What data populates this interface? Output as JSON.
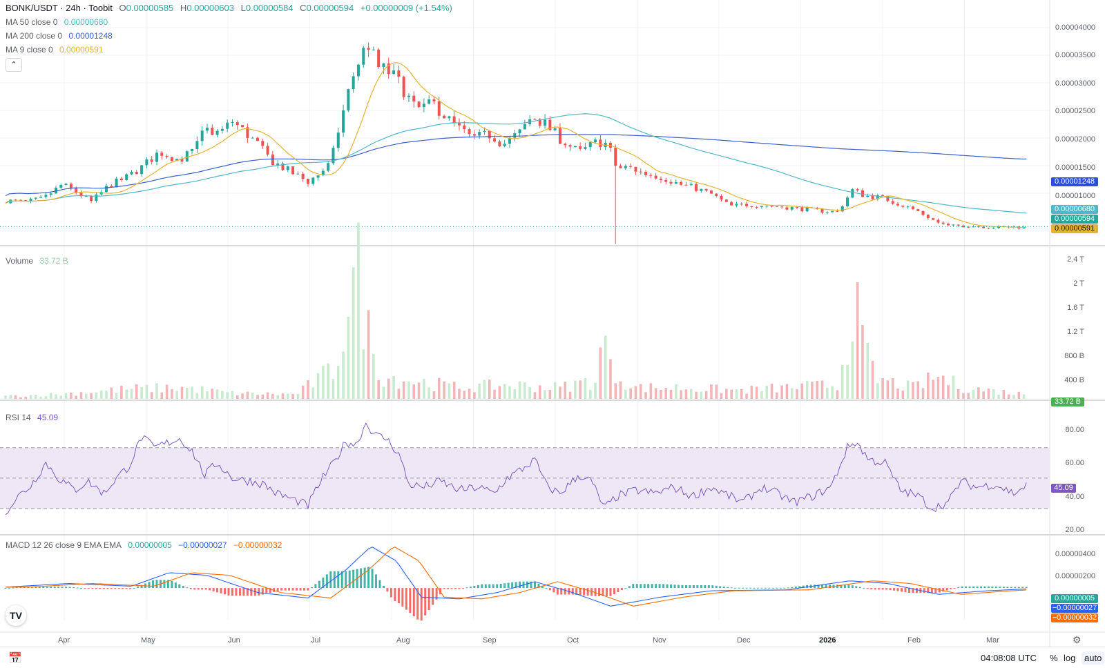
{
  "header": {
    "symbol": "BONK/USDT · 24h · Toobit",
    "ohlc": {
      "o_label": "O",
      "o": "0.00000585",
      "h_label": "H",
      "h": "0.00000603",
      "l_label": "L",
      "l": "0.00000584",
      "c_label": "C",
      "c": "0.00000594",
      "change": "+0.00000009 (+1.54%)"
    }
  },
  "indicators": {
    "ma50": {
      "label": "MA 50 close 0",
      "value": "0.00000680",
      "color": "#4fb8c9"
    },
    "ma200": {
      "label": "MA 200 close 0",
      "value": "0.00001248",
      "color": "#3d5fcf"
    },
    "ma9": {
      "label": "MA 9 close 0",
      "value": "0.00000591",
      "color": "#e5b333"
    },
    "collapse_icon": "chevron-up-icon"
  },
  "price_axis": {
    "ticks": [
      "0.00004000",
      "0.00003500",
      "0.00003000",
      "0.00002500",
      "0.00002000",
      "0.00001500",
      "0.00001000"
    ],
    "tags": {
      "ma200": "0.00001248",
      "ma50": "0.00000680",
      "last": "0.00000594",
      "ma9": "0.00000591"
    }
  },
  "volume": {
    "label": "Volume",
    "value": "33.72 B",
    "ticks": [
      "2.4 T",
      "2 T",
      "1.6 T",
      "1.2 T",
      "800 B",
      "400 B"
    ],
    "tag": "33.72 B"
  },
  "rsi": {
    "label": "RSI 14",
    "value": "45.09",
    "ticks": [
      "80.00",
      "60.00",
      "40.00",
      "20.00"
    ],
    "tag": "45.09"
  },
  "macd": {
    "label": "MACD 12 26 close 9 EMA EMA",
    "v1": "0.00000005",
    "v2": "−0.00000027",
    "v3": "−0.00000032",
    "ticks": [
      "0.00000400",
      "0.00000200"
    ],
    "tags": [
      "0.00000005",
      "−0.00000027",
      "−0.00000032"
    ]
  },
  "time_axis": [
    "Apr",
    "May",
    "Jun",
    "Jul",
    "Aug",
    "Sep",
    "Oct",
    "Nov",
    "Dec",
    "2026",
    "Feb",
    "Mar"
  ],
  "bottom_bar": {
    "time": "04:08:08 UTC",
    "percent": "%",
    "log": "log",
    "auto": "auto",
    "date_range_icon": "calendar-range-icon",
    "settings_icon": "settings-icon"
  },
  "logo": {
    "text": "TV"
  },
  "colors": {
    "up": "#26a69a",
    "down": "#ef5350",
    "vol_up": "#c8ebd0",
    "vol_down": "#f2b6b8",
    "rsi_line": "#7e57c2",
    "rsi_band": "#ede7f6",
    "macd_line": "#2962ff",
    "signal_line": "#ff6d00"
  },
  "chart_data": {
    "type": "candlestick",
    "waypoints_price": [
      [
        0,
        1.07e-05
      ],
      [
        15,
        1.04e-05
      ],
      [
        30,
        1.1e-05
      ],
      [
        45,
        1.35e-05
      ],
      [
        58,
        1.19e-05
      ],
      [
        68,
        1.05e-05
      ],
      [
        82,
        1.33e-05
      ],
      [
        95,
        1.46e-05
      ],
      [
        108,
        1.65e-05
      ],
      [
        122,
        1.92e-05
      ],
      [
        138,
        1.78e-05
      ],
      [
        150,
        1.95e-05
      ],
      [
        158,
        2.3e-05
      ],
      [
        170,
        2.25e-05
      ],
      [
        180,
        2.45e-05
      ],
      [
        190,
        2.26e-05
      ],
      [
        200,
        2.05e-05
      ],
      [
        210,
        1.78e-05
      ],
      [
        225,
        1.58e-05
      ],
      [
        240,
        1.4e-05
      ],
      [
        248,
        1.52e-05
      ],
      [
        258,
        1.72e-05
      ],
      [
        265,
        2.38e-05
      ],
      [
        275,
        3.2e-05
      ],
      [
        282,
        3.6e-05
      ],
      [
        288,
        3.8e-05
      ],
      [
        295,
        3.4e-05
      ],
      [
        305,
        3.3e-05
      ],
      [
        315,
        3.05e-05
      ],
      [
        325,
        2.65e-05
      ],
      [
        340,
        2.75e-05
      ],
      [
        355,
        2.4e-05
      ],
      [
        370,
        2.15e-05
      ],
      [
        385,
        2.22e-05
      ],
      [
        395,
        2.05e-05
      ],
      [
        408,
        2.25e-05
      ],
      [
        418,
        2.55e-05
      ],
      [
        428,
        2.4e-05
      ],
      [
        440,
        2.15e-05
      ],
      [
        455,
        1.9e-05
      ],
      [
        470,
        2.1e-05
      ],
      [
        478,
        2.05e-05
      ],
      [
        485,
        1.62e-05
      ],
      [
        495,
        1.65e-05
      ],
      [
        505,
        1.55e-05
      ],
      [
        520,
        1.48e-05
      ],
      [
        535,
        1.35e-05
      ],
      [
        548,
        1.28e-05
      ],
      [
        560,
        1.18e-05
      ],
      [
        575,
        9.7e-06
      ],
      [
        590,
        1e-05
      ],
      [
        605,
        9.8e-06
      ],
      [
        620,
        9.5e-06
      ],
      [
        640,
        9e-06
      ],
      [
        660,
        8.7e-06
      ],
      [
        672,
        1.25e-05
      ],
      [
        682,
        1.15e-05
      ],
      [
        695,
        1.12e-05
      ],
      [
        710,
        1e-05
      ],
      [
        725,
        8.7e-06
      ],
      [
        738,
        7e-06
      ],
      [
        748,
        6.2e-06
      ],
      [
        758,
        6.3e-06
      ],
      [
        770,
        6.2e-06
      ],
      [
        785,
        6e-06
      ],
      [
        800,
        6.1e-06
      ],
      [
        810,
        5.9e-06
      ]
    ],
    "waypoints_rsi": [
      [
        0,
        28
      ],
      [
        10,
        38
      ],
      [
        20,
        45
      ],
      [
        32,
        60
      ],
      [
        42,
        50
      ],
      [
        55,
        42
      ],
      [
        65,
        48
      ],
      [
        78,
        40
      ],
      [
        88,
        50
      ],
      [
        98,
        58
      ],
      [
        108,
        77
      ],
      [
        118,
        70
      ],
      [
        128,
        73
      ],
      [
        138,
        76
      ],
      [
        148,
        68
      ],
      [
        158,
        52
      ],
      [
        168,
        60
      ],
      [
        180,
        50
      ],
      [
        195,
        48
      ],
      [
        205,
        46
      ],
      [
        215,
        40
      ],
      [
        228,
        36
      ],
      [
        240,
        32
      ],
      [
        250,
        48
      ],
      [
        262,
        62
      ],
      [
        270,
        74
      ],
      [
        278,
        72
      ],
      [
        286,
        86
      ],
      [
        294,
        78
      ],
      [
        302,
        76
      ],
      [
        312,
        66
      ],
      [
        320,
        46
      ],
      [
        332,
        44
      ],
      [
        345,
        48
      ],
      [
        360,
        42
      ],
      [
        375,
        44
      ],
      [
        388,
        40
      ],
      [
        398,
        50
      ],
      [
        410,
        56
      ],
      [
        420,
        62
      ],
      [
        430,
        44
      ],
      [
        440,
        40
      ],
      [
        455,
        52
      ],
      [
        465,
        48
      ],
      [
        475,
        30
      ],
      [
        485,
        38
      ],
      [
        500,
        42
      ],
      [
        515,
        40
      ],
      [
        530,
        44
      ],
      [
        545,
        38
      ],
      [
        560,
        44
      ],
      [
        575,
        38
      ],
      [
        585,
        34
      ],
      [
        600,
        44
      ],
      [
        612,
        40
      ],
      [
        625,
        34
      ],
      [
        640,
        38
      ],
      [
        655,
        44
      ],
      [
        668,
        70
      ],
      [
        675,
        74
      ],
      [
        685,
        62
      ],
      [
        698,
        60
      ],
      [
        710,
        42
      ],
      [
        725,
        38
      ],
      [
        735,
        30
      ],
      [
        748,
        34
      ],
      [
        758,
        48
      ],
      [
        770,
        44
      ],
      [
        785,
        46
      ],
      [
        800,
        40
      ],
      [
        810,
        45
      ]
    ],
    "waypoints_vol": [
      [
        0,
        0.05
      ],
      [
        40,
        0.08
      ],
      [
        100,
        0.18
      ],
      [
        140,
        0.2
      ],
      [
        180,
        0.1
      ],
      [
        230,
        0.08
      ],
      [
        262,
        0.55
      ],
      [
        270,
        1.6
      ],
      [
        280,
        2.2
      ],
      [
        290,
        0.9
      ],
      [
        300,
        0.4
      ],
      [
        330,
        0.3
      ],
      [
        360,
        0.2
      ],
      [
        400,
        0.25
      ],
      [
        440,
        0.2
      ],
      [
        470,
        0.35
      ],
      [
        475,
        1.3
      ],
      [
        480,
        0.5
      ],
      [
        500,
        0.2
      ],
      [
        540,
        0.2
      ],
      [
        580,
        0.15
      ],
      [
        620,
        0.2
      ],
      [
        660,
        0.25
      ],
      [
        668,
        1.05
      ],
      [
        672,
        2.0
      ],
      [
        678,
        1.1
      ],
      [
        690,
        0.35
      ],
      [
        720,
        0.2
      ],
      [
        740,
        0.4
      ],
      [
        760,
        0.2
      ],
      [
        810,
        0.08
      ]
    ],
    "waypoints_macd": [
      [
        0,
        1e-07
      ],
      [
        50,
        5e-07
      ],
      [
        100,
        2e-07
      ],
      [
        130,
        1.7e-06
      ],
      [
        160,
        1.4e-06
      ],
      [
        200,
        -5e-07
      ],
      [
        240,
        -1.1e-06
      ],
      [
        270,
        2e-06
      ],
      [
        290,
        4.6e-06
      ],
      [
        310,
        3e-06
      ],
      [
        330,
        -1e-06
      ],
      [
        360,
        -1.2e-06
      ],
      [
        390,
        -5e-07
      ],
      [
        420,
        7e-07
      ],
      [
        450,
        -5e-07
      ],
      [
        480,
        -2e-06
      ],
      [
        520,
        -1e-06
      ],
      [
        560,
        -3e-07
      ],
      [
        620,
        -2e-07
      ],
      [
        670,
        8e-07
      ],
      [
        700,
        5e-07
      ],
      [
        740,
        -7e-07
      ],
      [
        780,
        -3e-07
      ],
      [
        810,
        -1e-07
      ]
    ],
    "num_bars": 811,
    "price_range": [
      2.8e-06,
      4.45e-05
    ],
    "volume_range": [
      0,
      2.55
    ],
    "rsi_range": [
      15,
      93
    ],
    "macd_range": [
      -3.5e-06,
      5.5e-06
    ]
  }
}
